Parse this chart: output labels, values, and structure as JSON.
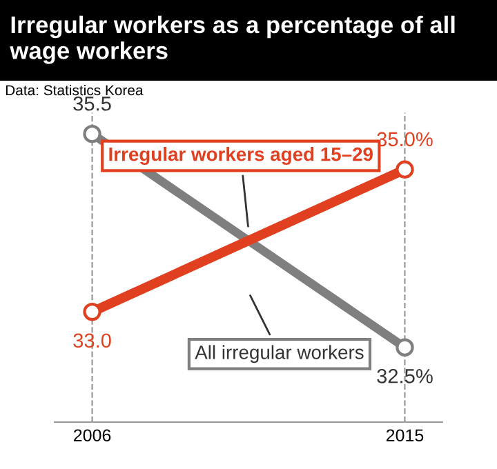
{
  "chart_data": {
    "type": "line",
    "title": "Irregular workers as a percentage of all wage workers",
    "annotations": [
      "Data: Statistics Korea"
    ],
    "categories": [
      "2006",
      "2015"
    ],
    "series": [
      {
        "name": "All irregular workers",
        "color": "#7f7f7f",
        "values": [
          35.5,
          32.5
        ],
        "value_labels": [
          "35.5",
          "32.5%"
        ]
      },
      {
        "name": "Irregular workers aged 15–29",
        "color": "#e0401f",
        "values": [
          33.0,
          35.0
        ],
        "value_labels": [
          "33.0",
          "35.0%"
        ]
      }
    ],
    "marker": "circle",
    "grid": "x",
    "legend": false,
    "tick_labels": "x"
  }
}
